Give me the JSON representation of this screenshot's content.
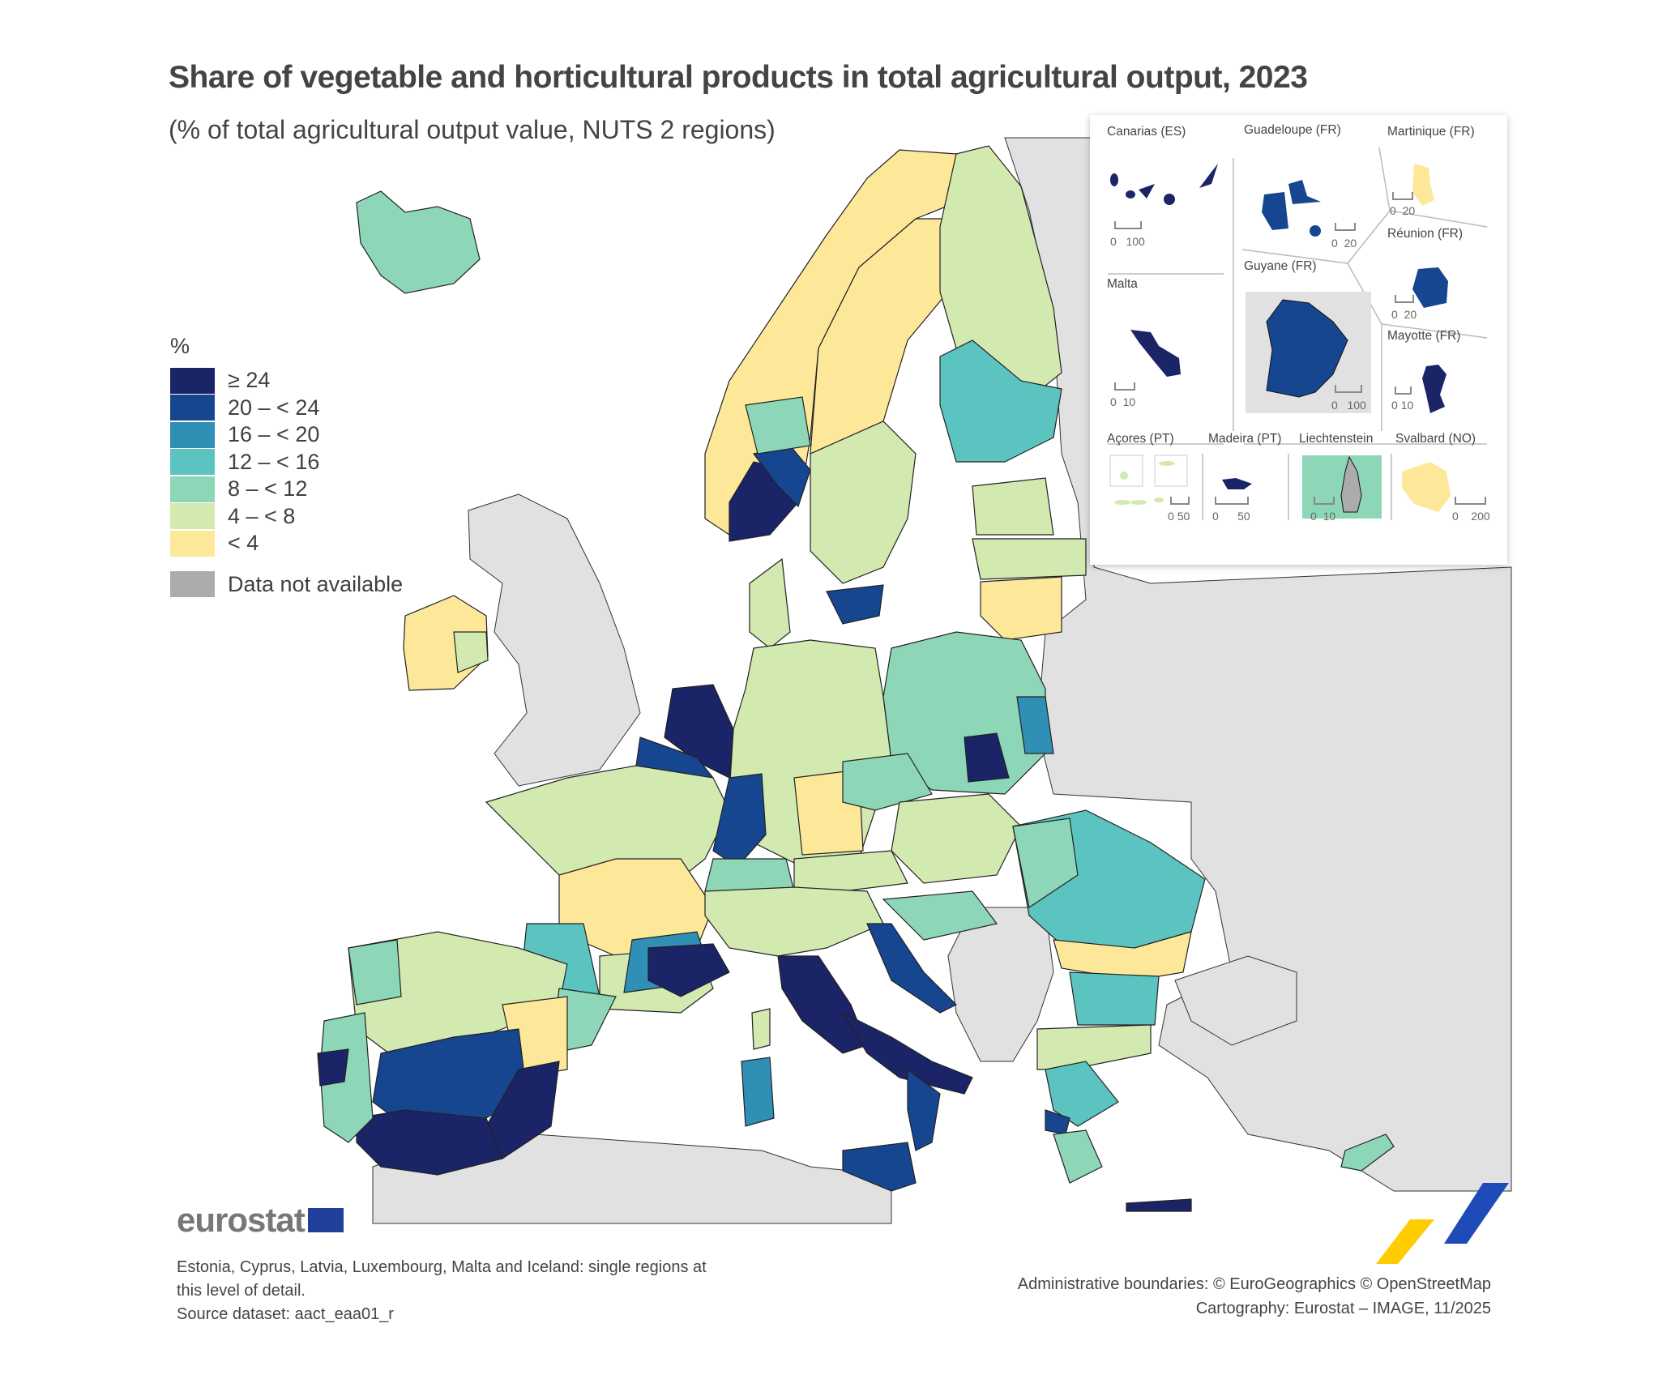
{
  "header": {
    "title": "Share of vegetable and horticultural products in total agricultural output, 2023",
    "subtitle": "(% of total agricultural output value, NUTS 2 regions)"
  },
  "legend": {
    "unit": "%",
    "classes": [
      {
        "label": "≥ 24",
        "color": "#1a2466"
      },
      {
        "label": "20 – < 24",
        "color": "#15468f"
      },
      {
        "label": "16 – < 20",
        "color": "#2f8fb5"
      },
      {
        "label": "12 – < 16",
        "color": "#5bc4c0"
      },
      {
        "label": "8 – < 12",
        "color": "#8dd7b8"
      },
      {
        "label": "4 – < 8",
        "color": "#d2e9b0"
      },
      {
        "label": "< 4",
        "color": "#fde89a"
      }
    ],
    "not_available": {
      "label": "Data not available",
      "color": "#acacac"
    }
  },
  "insets": [
    {
      "name": "Canarias (ES)",
      "scale": [
        "0",
        "100"
      ],
      "class": "≥ 24"
    },
    {
      "name": "Guadeloupe (FR)",
      "scale": [
        "0",
        "20"
      ],
      "class": "20 – < 24"
    },
    {
      "name": "Martinique (FR)",
      "scale": [
        "0",
        "20"
      ],
      "class": "< 4"
    },
    {
      "name": "Réunion (FR)",
      "scale": [
        "0",
        "20"
      ],
      "class": "20 – < 24"
    },
    {
      "name": "Malta",
      "scale": [
        "0",
        "10"
      ],
      "class": "≥ 24"
    },
    {
      "name": "Guyane (FR)",
      "scale": [
        "0",
        "100"
      ],
      "class": "20 – < 24"
    },
    {
      "name": "Mayotte (FR)",
      "scale": [
        "0",
        "10"
      ],
      "class": "≥ 24"
    },
    {
      "name": "Açores (PT)",
      "scale": [
        "0",
        "50"
      ],
      "class": "4 – < 8"
    },
    {
      "name": "Madeira (PT)",
      "scale": [
        "0",
        "50"
      ],
      "class": "≥ 24"
    },
    {
      "name": "Liechtenstein",
      "scale": [
        "0",
        "10"
      ],
      "class": "Data not available"
    },
    {
      "name": "Svalbard (NO)",
      "scale": [
        "0",
        "200"
      ],
      "class": "< 4"
    }
  ],
  "branding": {
    "logo_text": "eurostat"
  },
  "footer": {
    "note_line1": "Estonia, Cyprus, Latvia, Luxembourg, Malta and Iceland: single regions at",
    "note_line2": "this level of detail.",
    "source": "Source dataset: aact_eaa01_r",
    "boundaries": "Administrative boundaries: © EuroGeographics © OpenStreetMap",
    "cartography": "Cartography: Eurostat – IMAGE, 11/2025"
  }
}
